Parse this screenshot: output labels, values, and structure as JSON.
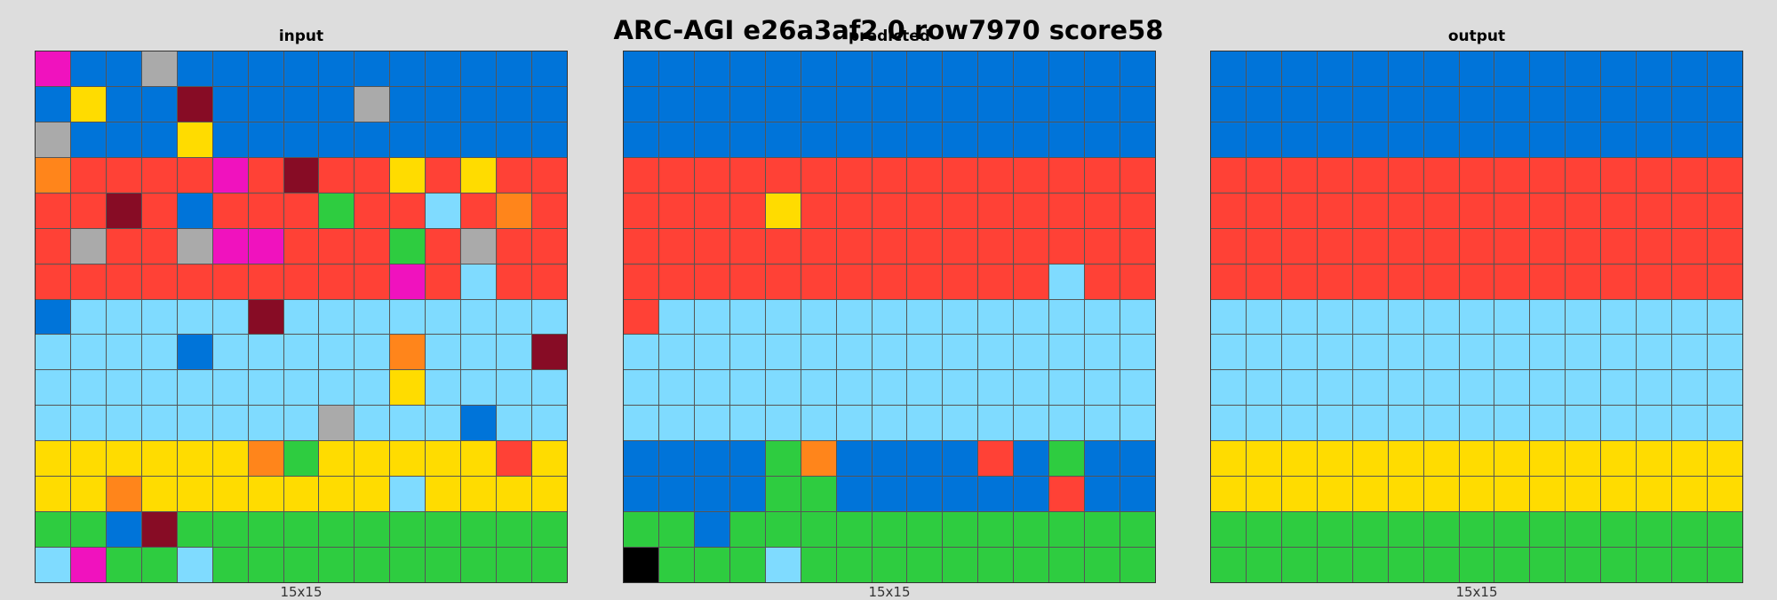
{
  "title": "ARC-AGI e26a3af2 0 row7970 score58",
  "palette": {
    "0": "#000000",
    "1": "#0074d9",
    "2": "#ff4136",
    "3": "#2ecc40",
    "4": "#ffdc00",
    "5": "#aaaaaa",
    "6": "#f012be",
    "7": "#ff851b",
    "8": "#7fdbff",
    "9": "#870c25"
  },
  "panels": [
    {
      "label": "input",
      "size_label": "15x15",
      "grid": [
        [
          6,
          1,
          1,
          5,
          1,
          1,
          1,
          1,
          1,
          1,
          1,
          1,
          1,
          1,
          1
        ],
        [
          1,
          4,
          1,
          1,
          9,
          1,
          1,
          1,
          1,
          5,
          1,
          1,
          1,
          1,
          1
        ],
        [
          5,
          1,
          1,
          1,
          4,
          1,
          1,
          1,
          1,
          1,
          1,
          1,
          1,
          1,
          1
        ],
        [
          7,
          2,
          2,
          2,
          2,
          6,
          2,
          9,
          2,
          2,
          4,
          2,
          4,
          2,
          2
        ],
        [
          2,
          2,
          9,
          2,
          1,
          2,
          2,
          2,
          3,
          2,
          2,
          8,
          2,
          7,
          2
        ],
        [
          2,
          5,
          2,
          2,
          5,
          6,
          6,
          2,
          2,
          2,
          3,
          2,
          5,
          2,
          2
        ],
        [
          2,
          2,
          2,
          2,
          2,
          2,
          2,
          2,
          2,
          2,
          6,
          2,
          8,
          2,
          2
        ],
        [
          1,
          8,
          8,
          8,
          8,
          8,
          9,
          8,
          8,
          8,
          8,
          8,
          8,
          8,
          8
        ],
        [
          8,
          8,
          8,
          8,
          1,
          8,
          8,
          8,
          8,
          8,
          7,
          8,
          8,
          8,
          9
        ],
        [
          8,
          8,
          8,
          8,
          8,
          8,
          8,
          8,
          8,
          8,
          4,
          8,
          8,
          8,
          8
        ],
        [
          8,
          8,
          8,
          8,
          8,
          8,
          8,
          8,
          5,
          8,
          8,
          8,
          1,
          8,
          8
        ],
        [
          4,
          4,
          4,
          4,
          4,
          4,
          7,
          3,
          4,
          4,
          4,
          4,
          4,
          2,
          4
        ],
        [
          4,
          4,
          7,
          4,
          4,
          4,
          4,
          4,
          4,
          4,
          8,
          4,
          4,
          4,
          4
        ],
        [
          3,
          3,
          1,
          9,
          3,
          3,
          3,
          3,
          3,
          3,
          3,
          3,
          3,
          3,
          3
        ],
        [
          8,
          6,
          3,
          3,
          8,
          3,
          3,
          3,
          3,
          3,
          3,
          3,
          3,
          3,
          3
        ]
      ]
    },
    {
      "label": "predicted",
      "size_label": "15x15",
      "grid": [
        [
          1,
          1,
          1,
          1,
          1,
          1,
          1,
          1,
          1,
          1,
          1,
          1,
          1,
          1,
          1
        ],
        [
          1,
          1,
          1,
          1,
          1,
          1,
          1,
          1,
          1,
          1,
          1,
          1,
          1,
          1,
          1
        ],
        [
          1,
          1,
          1,
          1,
          1,
          1,
          1,
          1,
          1,
          1,
          1,
          1,
          1,
          1,
          1
        ],
        [
          2,
          2,
          2,
          2,
          2,
          2,
          2,
          2,
          2,
          2,
          2,
          2,
          2,
          2,
          2
        ],
        [
          2,
          2,
          2,
          2,
          4,
          2,
          2,
          2,
          2,
          2,
          2,
          2,
          2,
          2,
          2
        ],
        [
          2,
          2,
          2,
          2,
          2,
          2,
          2,
          2,
          2,
          2,
          2,
          2,
          2,
          2,
          2
        ],
        [
          2,
          2,
          2,
          2,
          2,
          2,
          2,
          2,
          2,
          2,
          2,
          2,
          8,
          2,
          2
        ],
        [
          2,
          8,
          8,
          8,
          8,
          8,
          8,
          8,
          8,
          8,
          8,
          8,
          8,
          8,
          8
        ],
        [
          8,
          8,
          8,
          8,
          8,
          8,
          8,
          8,
          8,
          8,
          8,
          8,
          8,
          8,
          8
        ],
        [
          8,
          8,
          8,
          8,
          8,
          8,
          8,
          8,
          8,
          8,
          8,
          8,
          8,
          8,
          8
        ],
        [
          8,
          8,
          8,
          8,
          8,
          8,
          8,
          8,
          8,
          8,
          8,
          8,
          8,
          8,
          8
        ],
        [
          1,
          1,
          1,
          1,
          3,
          7,
          1,
          1,
          1,
          1,
          2,
          1,
          3,
          1,
          1
        ],
        [
          1,
          1,
          1,
          1,
          3,
          3,
          1,
          1,
          1,
          1,
          1,
          1,
          2,
          1,
          1
        ],
        [
          3,
          3,
          1,
          3,
          3,
          3,
          3,
          3,
          3,
          3,
          3,
          3,
          3,
          3,
          3
        ],
        [
          0,
          3,
          3,
          3,
          8,
          3,
          3,
          3,
          3,
          3,
          3,
          3,
          3,
          3,
          3
        ]
      ]
    },
    {
      "label": "output",
      "size_label": "15x15",
      "grid": [
        [
          1,
          1,
          1,
          1,
          1,
          1,
          1,
          1,
          1,
          1,
          1,
          1,
          1,
          1,
          1
        ],
        [
          1,
          1,
          1,
          1,
          1,
          1,
          1,
          1,
          1,
          1,
          1,
          1,
          1,
          1,
          1
        ],
        [
          1,
          1,
          1,
          1,
          1,
          1,
          1,
          1,
          1,
          1,
          1,
          1,
          1,
          1,
          1
        ],
        [
          2,
          2,
          2,
          2,
          2,
          2,
          2,
          2,
          2,
          2,
          2,
          2,
          2,
          2,
          2
        ],
        [
          2,
          2,
          2,
          2,
          2,
          2,
          2,
          2,
          2,
          2,
          2,
          2,
          2,
          2,
          2
        ],
        [
          2,
          2,
          2,
          2,
          2,
          2,
          2,
          2,
          2,
          2,
          2,
          2,
          2,
          2,
          2
        ],
        [
          2,
          2,
          2,
          2,
          2,
          2,
          2,
          2,
          2,
          2,
          2,
          2,
          2,
          2,
          2
        ],
        [
          8,
          8,
          8,
          8,
          8,
          8,
          8,
          8,
          8,
          8,
          8,
          8,
          8,
          8,
          8
        ],
        [
          8,
          8,
          8,
          8,
          8,
          8,
          8,
          8,
          8,
          8,
          8,
          8,
          8,
          8,
          8
        ],
        [
          8,
          8,
          8,
          8,
          8,
          8,
          8,
          8,
          8,
          8,
          8,
          8,
          8,
          8,
          8
        ],
        [
          8,
          8,
          8,
          8,
          8,
          8,
          8,
          8,
          8,
          8,
          8,
          8,
          8,
          8,
          8
        ],
        [
          4,
          4,
          4,
          4,
          4,
          4,
          4,
          4,
          4,
          4,
          4,
          4,
          4,
          4,
          4
        ],
        [
          4,
          4,
          4,
          4,
          4,
          4,
          4,
          4,
          4,
          4,
          4,
          4,
          4,
          4,
          4
        ],
        [
          3,
          3,
          3,
          3,
          3,
          3,
          3,
          3,
          3,
          3,
          3,
          3,
          3,
          3,
          3
        ],
        [
          3,
          3,
          3,
          3,
          3,
          3,
          3,
          3,
          3,
          3,
          3,
          3,
          3,
          3,
          3
        ]
      ]
    }
  ]
}
